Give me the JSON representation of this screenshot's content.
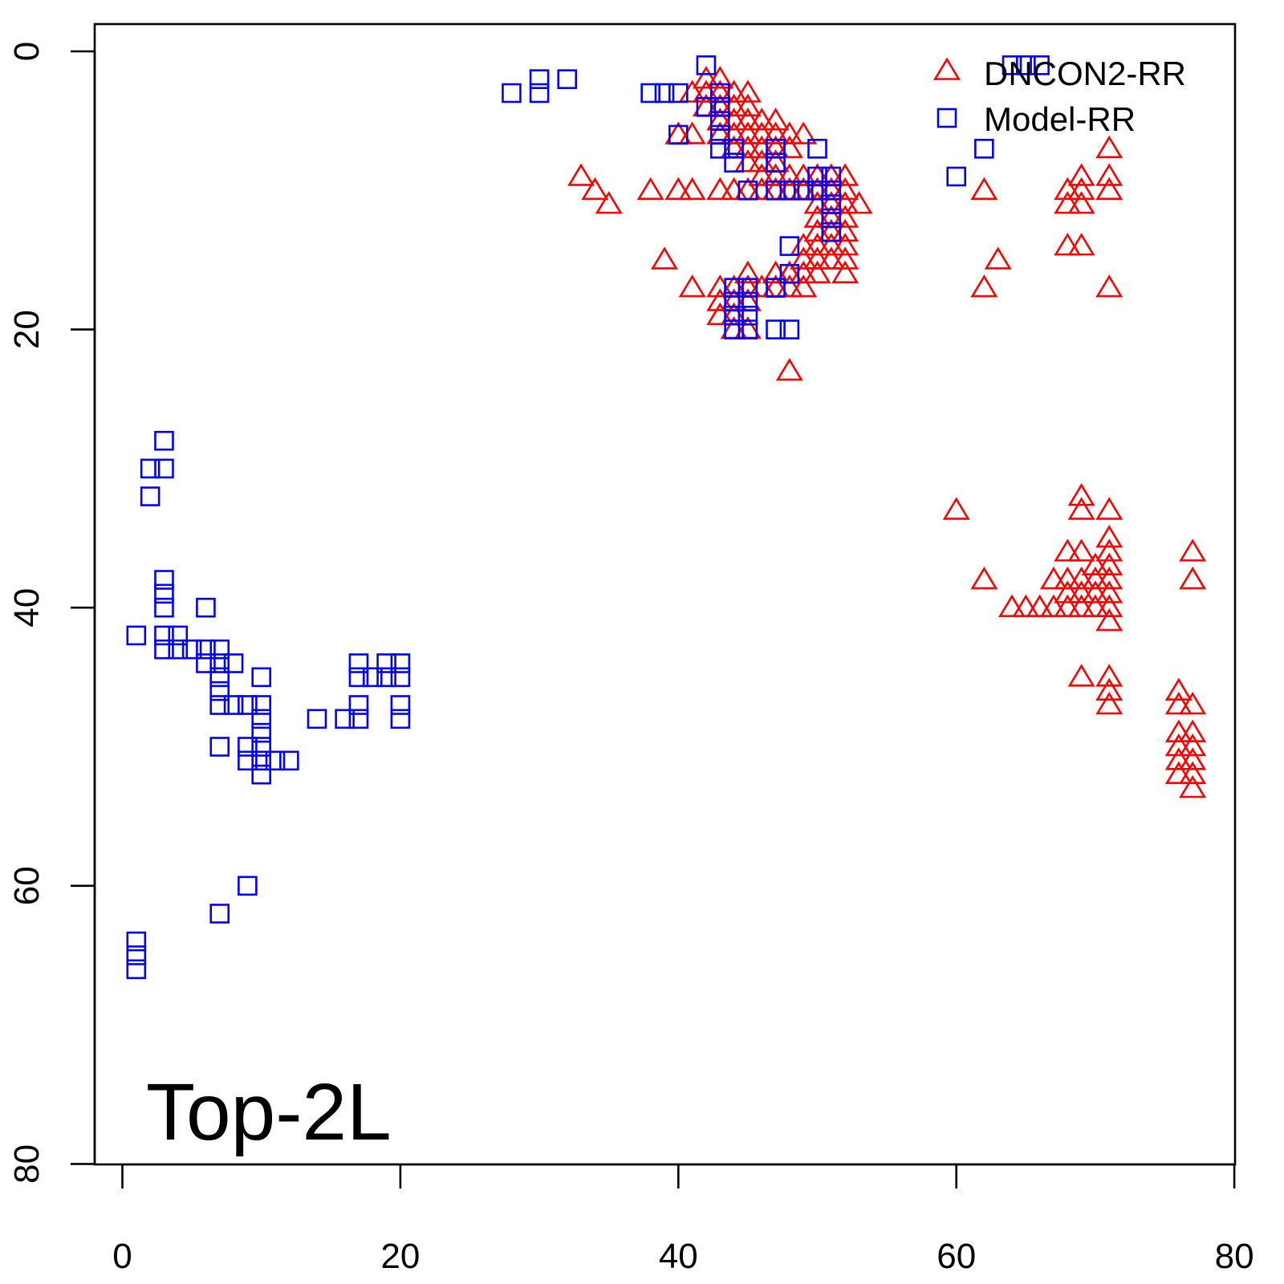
{
  "chart_data": {
    "type": "scatter",
    "title": "",
    "annotation": "Top-2L",
    "xlim": [
      -2,
      80
    ],
    "ylim": [
      0,
      80
    ],
    "y_reversed": true,
    "x_ticks": [
      0,
      20,
      40,
      60,
      80
    ],
    "y_ticks": [
      0,
      20,
      40,
      60,
      80
    ],
    "grid": false,
    "legend_position": "top-right",
    "series": [
      {
        "name": "DNCON2-RR",
        "marker": "triangle",
        "color": "#ff0000",
        "points": [
          [
            42,
            2
          ],
          [
            43,
            2
          ],
          [
            42,
            3
          ],
          [
            43,
            3
          ],
          [
            44,
            3
          ],
          [
            45,
            3
          ],
          [
            41,
            3
          ],
          [
            43,
            4
          ],
          [
            44,
            4
          ],
          [
            45,
            4
          ],
          [
            42,
            4
          ],
          [
            43,
            5
          ],
          [
            44,
            5
          ],
          [
            45,
            5
          ],
          [
            46,
            5
          ],
          [
            47,
            5
          ],
          [
            40,
            6
          ],
          [
            41,
            6
          ],
          [
            43,
            6
          ],
          [
            44,
            6
          ],
          [
            45,
            6
          ],
          [
            46,
            6
          ],
          [
            47,
            6
          ],
          [
            48,
            6
          ],
          [
            49,
            6
          ],
          [
            44,
            7
          ],
          [
            45,
            7
          ],
          [
            46,
            7
          ],
          [
            47,
            7
          ],
          [
            48,
            7
          ],
          [
            45,
            8
          ],
          [
            46,
            8
          ],
          [
            47,
            8
          ],
          [
            46,
            9
          ],
          [
            47,
            9
          ],
          [
            33,
            9
          ],
          [
            34,
            10
          ],
          [
            35,
            11
          ],
          [
            38,
            10
          ],
          [
            40,
            10
          ],
          [
            41,
            10
          ],
          [
            43,
            10
          ],
          [
            44,
            10
          ],
          [
            45,
            10
          ],
          [
            46,
            10
          ],
          [
            47,
            10
          ],
          [
            48,
            10
          ],
          [
            49,
            10
          ],
          [
            50,
            10
          ],
          [
            51,
            10
          ],
          [
            52,
            10
          ],
          [
            48,
            9
          ],
          [
            49,
            9
          ],
          [
            50,
            9
          ],
          [
            51,
            9
          ],
          [
            52,
            9
          ],
          [
            50,
            11
          ],
          [
            51,
            11
          ],
          [
            52,
            11
          ],
          [
            53,
            11
          ],
          [
            50,
            12
          ],
          [
            51,
            12
          ],
          [
            52,
            12
          ],
          [
            50,
            13
          ],
          [
            51,
            13
          ],
          [
            52,
            13
          ],
          [
            49,
            14
          ],
          [
            50,
            14
          ],
          [
            51,
            14
          ],
          [
            52,
            14
          ],
          [
            49,
            15
          ],
          [
            50,
            15
          ],
          [
            51,
            15
          ],
          [
            52,
            15
          ],
          [
            48,
            16
          ],
          [
            49,
            16
          ],
          [
            50,
            16
          ],
          [
            52,
            16
          ],
          [
            39,
            15
          ],
          [
            45,
            16
          ],
          [
            47,
            16
          ],
          [
            48,
            16
          ],
          [
            41,
            17
          ],
          [
            43,
            17
          ],
          [
            44,
            17
          ],
          [
            45,
            17
          ],
          [
            46,
            17
          ],
          [
            47,
            17
          ],
          [
            48,
            17
          ],
          [
            49,
            17
          ],
          [
            43,
            18
          ],
          [
            44,
            18
          ],
          [
            45,
            18
          ],
          [
            43,
            19
          ],
          [
            44,
            19
          ],
          [
            44,
            20
          ],
          [
            45,
            20
          ],
          [
            48,
            23
          ],
          [
            62,
            10
          ],
          [
            63,
            15
          ],
          [
            62,
            17
          ],
          [
            68,
            10
          ],
          [
            69,
            10
          ],
          [
            68,
            11
          ],
          [
            69,
            11
          ],
          [
            69,
            9
          ],
          [
            71,
            7
          ],
          [
            71,
            9
          ],
          [
            71,
            10
          ],
          [
            68,
            14
          ],
          [
            69,
            14
          ],
          [
            71,
            17
          ],
          [
            60,
            33
          ],
          [
            69,
            32
          ],
          [
            69,
            33
          ],
          [
            71,
            33
          ],
          [
            71,
            35
          ],
          [
            71,
            36
          ],
          [
            68,
            36
          ],
          [
            69,
            36
          ],
          [
            70,
            37
          ],
          [
            71,
            37
          ],
          [
            67,
            38
          ],
          [
            68,
            38
          ],
          [
            69,
            38
          ],
          [
            70,
            38
          ],
          [
            71,
            38
          ],
          [
            68,
            39
          ],
          [
            69,
            39
          ],
          [
            70,
            39
          ],
          [
            71,
            39
          ],
          [
            64,
            40
          ],
          [
            65,
            40
          ],
          [
            66,
            40
          ],
          [
            67,
            40
          ],
          [
            68,
            40
          ],
          [
            69,
            40
          ],
          [
            70,
            40
          ],
          [
            71,
            40
          ],
          [
            62,
            38
          ],
          [
            71,
            41
          ],
          [
            69,
            45
          ],
          [
            71,
            45
          ],
          [
            71,
            46
          ],
          [
            71,
            47
          ],
          [
            76,
            46
          ],
          [
            76,
            47
          ],
          [
            77,
            47
          ],
          [
            76,
            49
          ],
          [
            77,
            49
          ],
          [
            76,
            50
          ],
          [
            77,
            50
          ],
          [
            76,
            51
          ],
          [
            77,
            51
          ],
          [
            76,
            52
          ],
          [
            77,
            52
          ],
          [
            77,
            53
          ],
          [
            77,
            36
          ],
          [
            77,
            38
          ]
        ]
      },
      {
        "name": "Model-RR",
        "marker": "square",
        "color": "#0000ff",
        "points": [
          [
            42,
            1
          ],
          [
            64,
            1
          ],
          [
            65,
            1
          ],
          [
            66,
            1
          ],
          [
            28,
            3
          ],
          [
            30,
            3
          ],
          [
            30,
            2
          ],
          [
            32,
            2
          ],
          [
            38,
            3
          ],
          [
            39,
            3
          ],
          [
            40,
            3
          ],
          [
            43,
            3
          ],
          [
            42,
            4
          ],
          [
            43,
            4
          ],
          [
            43,
            5
          ],
          [
            40,
            6
          ],
          [
            43,
            6
          ],
          [
            43,
            7
          ],
          [
            44,
            7
          ],
          [
            47,
            7
          ],
          [
            50,
            7
          ],
          [
            47,
            8
          ],
          [
            44,
            8
          ],
          [
            60,
            9
          ],
          [
            62,
            7
          ],
          [
            45,
            10
          ],
          [
            47,
            10
          ],
          [
            48,
            10
          ],
          [
            49,
            10
          ],
          [
            50,
            10
          ],
          [
            51,
            10
          ],
          [
            51,
            9
          ],
          [
            50,
            9
          ],
          [
            51,
            11
          ],
          [
            51,
            12
          ],
          [
            51,
            13
          ],
          [
            48,
            14
          ],
          [
            47,
            17
          ],
          [
            48,
            16
          ],
          [
            44,
            17
          ],
          [
            45,
            17
          ],
          [
            44,
            18
          ],
          [
            45,
            18
          ],
          [
            45,
            19
          ],
          [
            44,
            19
          ],
          [
            44,
            20
          ],
          [
            45,
            20
          ],
          [
            47,
            20
          ],
          [
            48,
            20
          ],
          [
            3,
            28
          ],
          [
            2,
            30
          ],
          [
            3,
            30
          ],
          [
            2,
            32
          ],
          [
            3,
            38
          ],
          [
            3,
            39
          ],
          [
            3,
            40
          ],
          [
            6,
            40
          ],
          [
            1,
            42
          ],
          [
            3,
            42
          ],
          [
            4,
            42
          ],
          [
            3,
            43
          ],
          [
            4,
            43
          ],
          [
            5,
            43
          ],
          [
            6,
            43
          ],
          [
            7,
            43
          ],
          [
            6,
            44
          ],
          [
            7,
            44
          ],
          [
            8,
            44
          ],
          [
            7,
            45
          ],
          [
            10,
            45
          ],
          [
            7,
            46
          ],
          [
            7,
            47
          ],
          [
            8,
            47
          ],
          [
            9,
            47
          ],
          [
            10,
            47
          ],
          [
            10,
            48
          ],
          [
            14,
            48
          ],
          [
            16,
            48
          ],
          [
            17,
            48
          ],
          [
            10,
            49
          ],
          [
            10,
            50
          ],
          [
            7,
            50
          ],
          [
            9,
            50
          ],
          [
            9,
            51
          ],
          [
            10,
            51
          ],
          [
            11,
            51
          ],
          [
            12,
            51
          ],
          [
            10,
            52
          ],
          [
            17,
            44
          ],
          [
            19,
            44
          ],
          [
            20,
            44
          ],
          [
            17,
            45
          ],
          [
            18,
            45
          ],
          [
            19,
            45
          ],
          [
            20,
            45
          ],
          [
            17,
            47
          ],
          [
            20,
            47
          ],
          [
            20,
            48
          ],
          [
            9,
            60
          ],
          [
            7,
            62
          ],
          [
            1,
            64
          ],
          [
            1,
            65
          ],
          [
            1,
            66
          ]
        ]
      }
    ]
  }
}
